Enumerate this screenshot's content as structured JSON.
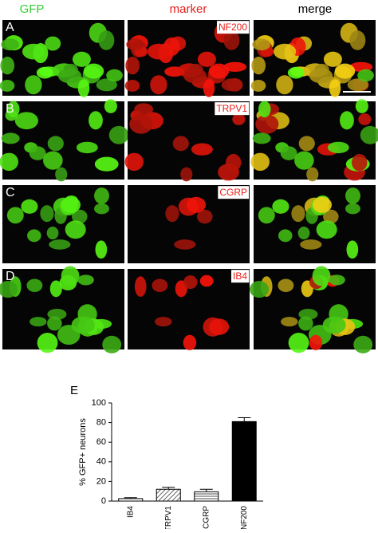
{
  "figure": {
    "column_headers": [
      "GFP",
      "marker",
      "merge"
    ],
    "rows": [
      {
        "label": "A",
        "marker": "NF200"
      },
      {
        "label": "B",
        "marker": "TRPV1"
      },
      {
        "label": "C",
        "marker": "CGRP"
      },
      {
        "label": "D",
        "marker": "IB4"
      }
    ]
  },
  "chart_data": {
    "type": "bar",
    "panel_label": "E",
    "ylabel": "% GFP+ neurons",
    "categories": [
      "IB4",
      "TRPV1",
      "CGRP",
      "NF200"
    ],
    "values": [
      2.5,
      12,
      9.5,
      81
    ],
    "errors": [
      1,
      2,
      2.5,
      4
    ],
    "fills": [
      "white",
      "diagonal-hatch",
      "horizontal-hatch",
      "black"
    ],
    "ylim": [
      0,
      100
    ],
    "yticks": [
      0,
      20,
      40,
      60,
      80,
      100
    ]
  }
}
